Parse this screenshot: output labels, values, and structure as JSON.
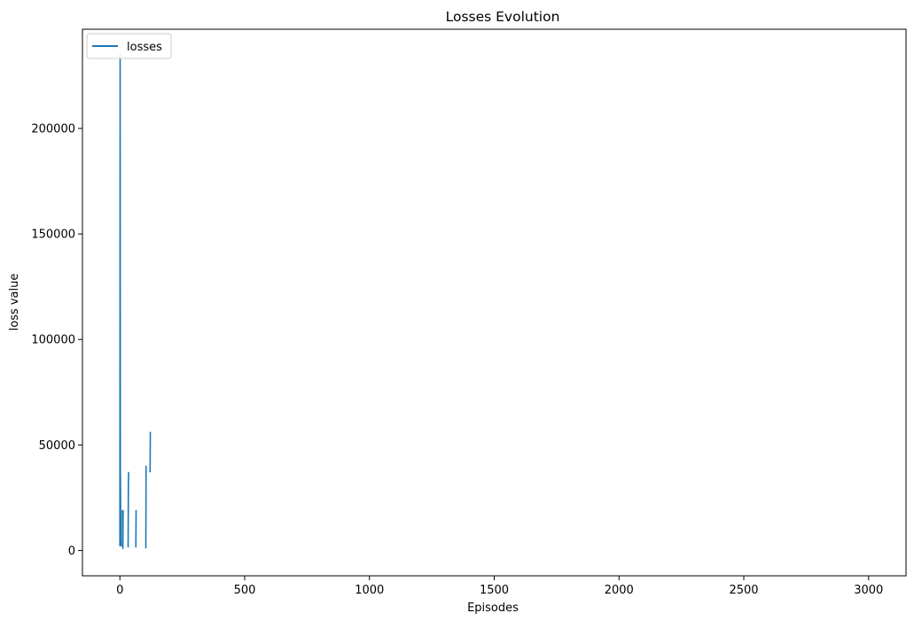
{
  "chart_data": {
    "type": "line",
    "title": "Losses Evolution",
    "xlabel": "Episodes",
    "ylabel": "loss value",
    "xlim": [
      -150,
      3150
    ],
    "ylim": [
      -12000,
      247000
    ],
    "xticks": [
      0,
      500,
      1000,
      1500,
      2000,
      2500,
      3000
    ],
    "yticks": [
      0,
      50000,
      100000,
      150000,
      200000
    ],
    "grid": false,
    "legend": {
      "placement": "upper-left"
    },
    "series": [
      {
        "name": "losses",
        "color": "#1f77b4",
        "segments": [
          {
            "x": [
              0,
              1,
              2,
              3,
              4,
              5
            ],
            "y": [
              2000,
              235000,
              38000,
              20000,
              5000,
              2000
            ]
          },
          {
            "x": [
              10,
              11,
              12,
              13,
              14
            ],
            "y": [
              19000,
              3000,
              1000,
              19000,
              19000
            ]
          },
          {
            "x": [
              33,
              34,
              35,
              36
            ],
            "y": [
              1500,
              30000,
              37000,
              37000
            ]
          },
          {
            "x": [
              64,
              65,
              66
            ],
            "y": [
              1500,
              19000,
              19000
            ]
          },
          {
            "x": [
              104,
              105,
              106
            ],
            "y": [
              1000,
              40000,
              40000
            ]
          },
          {
            "x": [
              121,
              122,
              123
            ],
            "y": [
              37000,
              56000,
              56000
            ]
          }
        ]
      }
    ]
  }
}
